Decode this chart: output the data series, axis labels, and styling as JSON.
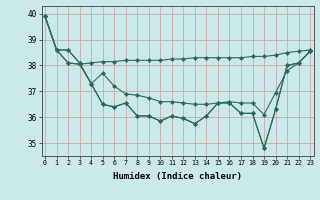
{
  "xlabel": "Humidex (Indice chaleur)",
  "x": [
    0,
    1,
    2,
    3,
    4,
    5,
    6,
    7,
    8,
    9,
    10,
    11,
    12,
    13,
    14,
    15,
    16,
    17,
    18,
    19,
    20,
    21,
    22,
    23
  ],
  "lines": [
    [
      39.9,
      38.6,
      38.1,
      38.05,
      38.1,
      38.15,
      38.15,
      38.2,
      38.2,
      38.2,
      38.2,
      38.25,
      38.25,
      38.3,
      38.3,
      38.3,
      38.3,
      38.3,
      38.35,
      38.35,
      38.4,
      38.5,
      38.55,
      38.6
    ],
    [
      39.9,
      38.6,
      38.1,
      38.05,
      37.3,
      37.7,
      37.2,
      36.9,
      36.85,
      36.75,
      36.6,
      36.6,
      36.55,
      36.5,
      36.5,
      36.55,
      36.6,
      36.55,
      36.55,
      36.1,
      36.95,
      37.8,
      38.1,
      38.55
    ],
    [
      39.9,
      38.6,
      38.6,
      38.1,
      37.3,
      36.5,
      36.4,
      36.55,
      36.05,
      36.05,
      35.85,
      36.05,
      35.95,
      35.75,
      36.05,
      36.55,
      36.55,
      36.15,
      36.15,
      34.8,
      36.3,
      38.0,
      38.1,
      38.55
    ],
    [
      39.9,
      38.6,
      38.6,
      38.1,
      37.3,
      36.5,
      36.4,
      36.55,
      36.05,
      36.05,
      35.85,
      36.05,
      35.95,
      35.75,
      36.05,
      36.55,
      36.55,
      36.15,
      36.15,
      34.8,
      36.3,
      38.0,
      38.1,
      38.55
    ]
  ],
  "line_color": "#2a6b5f",
  "bg_color": "#cce9e9",
  "grid_color": "#b8d8d8",
  "ylim": [
    34.5,
    40.3
  ],
  "yticks": [
    35,
    36,
    37,
    38,
    39,
    40
  ],
  "xlim": [
    -0.3,
    23.3
  ]
}
